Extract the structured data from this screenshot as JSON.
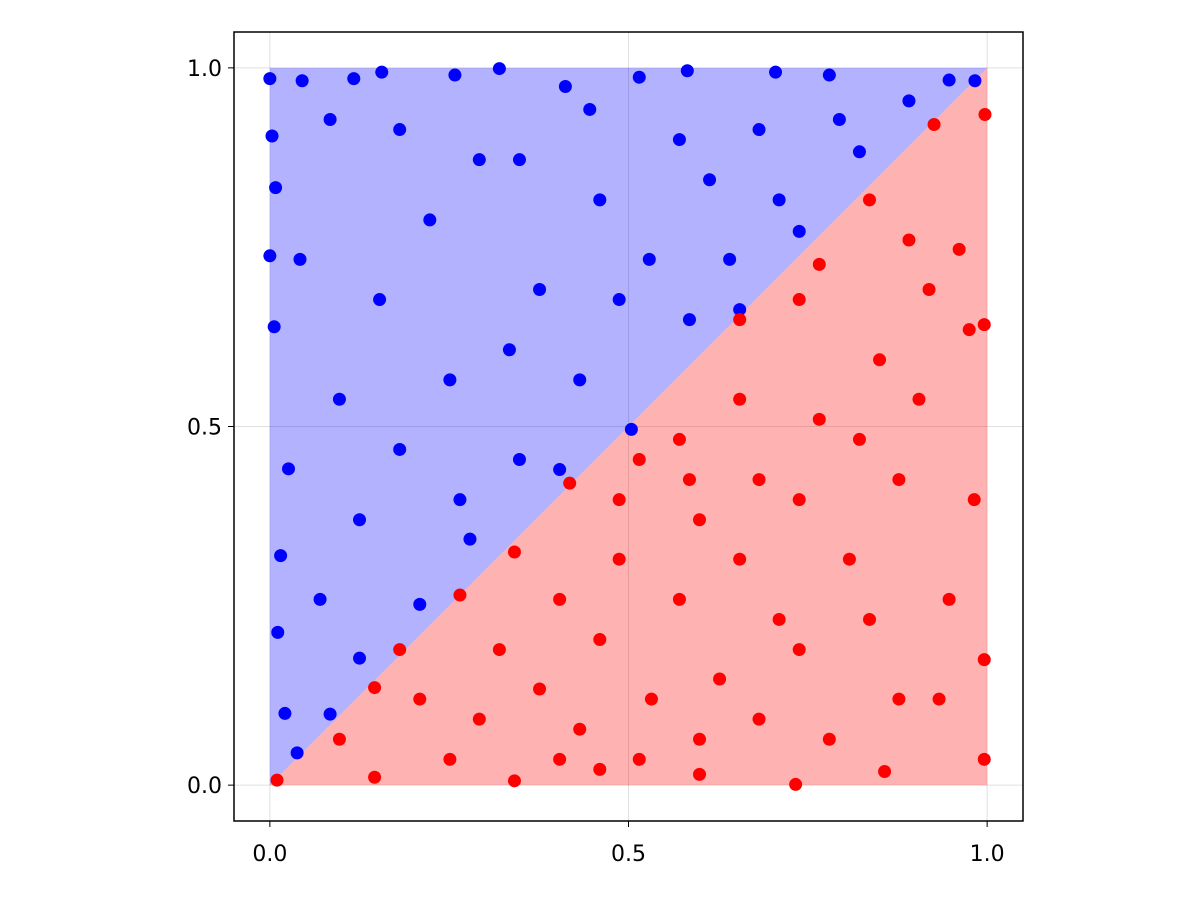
{
  "chart_data": {
    "type": "scatter",
    "title": "",
    "xlabel": "",
    "ylabel": "",
    "xlim": [
      -0.05,
      1.05
    ],
    "ylim": [
      -0.05,
      1.05
    ],
    "grid": true,
    "x_ticks": [
      "0.0",
      "0.5",
      "1.0"
    ],
    "y_ticks": [
      "0.0",
      "0.5",
      "1.0"
    ],
    "x_tick_values": [
      0,
      0.5,
      1
    ],
    "y_tick_values": [
      0,
      0.5,
      1
    ],
    "regions": [
      {
        "color": "#0000ff",
        "opacity": 0.3,
        "vertices": [
          [
            0,
            0
          ],
          [
            0,
            1
          ],
          [
            1,
            1
          ]
        ]
      },
      {
        "color": "#ff0000",
        "opacity": 0.3,
        "vertices": [
          [
            0,
            0
          ],
          [
            1,
            1
          ],
          [
            1,
            0
          ]
        ]
      }
    ],
    "note_points_sampled": true,
    "series": [
      {
        "color": "#0000ff",
        "points": [
          [
            0,
            0.985
          ],
          [
            0.003,
            0.905
          ],
          [
            0.008,
            0.833
          ],
          [
            0,
            0.738
          ],
          [
            0.006,
            0.639
          ],
          [
            0.026,
            0.441
          ],
          [
            0.015,
            0.32
          ],
          [
            0.011,
            0.213
          ],
          [
            0.021,
            0.1
          ],
          [
            0.038,
            0.045
          ],
          [
            0.045,
            0.982
          ],
          [
            0.084,
            0.928
          ],
          [
            0.117,
            0.985
          ],
          [
            0.156,
            0.994
          ],
          [
            0.258,
            0.99
          ],
          [
            0.32,
            0.999
          ],
          [
            0.412,
            0.974
          ],
          [
            0.515,
            0.987
          ],
          [
            0.582,
            0.996
          ],
          [
            0.705,
            0.994
          ],
          [
            0.78,
            0.99
          ],
          [
            0.891,
            0.954
          ],
          [
            0.983,
            0.982
          ],
          [
            0.822,
            0.883
          ],
          [
            0.738,
            0.772
          ],
          [
            0.655,
            0.663
          ],
          [
            0.585,
            0.649
          ],
          [
            0.504,
            0.496
          ],
          [
            0.404,
            0.44
          ],
          [
            0.279,
            0.343
          ],
          [
            0.209,
            0.252
          ],
          [
            0.125,
            0.177
          ],
          [
            0.084,
            0.099
          ],
          [
            0.042,
            0.733
          ],
          [
            0.097,
            0.538
          ],
          [
            0.153,
            0.677
          ],
          [
            0.223,
            0.788
          ],
          [
            0.292,
            0.872
          ],
          [
            0.376,
            0.691
          ],
          [
            0.46,
            0.816
          ],
          [
            0.529,
            0.733
          ],
          [
            0.613,
            0.844
          ],
          [
            0.682,
            0.914
          ],
          [
            0.181,
            0.468
          ],
          [
            0.251,
            0.565
          ],
          [
            0.334,
            0.607
          ],
          [
            0.432,
            0.565
          ],
          [
            0.487,
            0.677
          ],
          [
            0.125,
            0.37
          ],
          [
            0.07,
            0.259
          ],
          [
            0.181,
            0.914
          ],
          [
            0.348,
            0.872
          ],
          [
            0.446,
            0.942
          ],
          [
            0.571,
            0.9
          ],
          [
            0.641,
            0.733
          ],
          [
            0.71,
            0.816
          ],
          [
            0.794,
            0.928
          ],
          [
            0.947,
            0.983
          ],
          [
            0.265,
            0.398
          ],
          [
            0.348,
            0.454
          ]
        ]
      },
      {
        "color": "#ff0000",
        "points": [
          [
            0.01,
            0.007
          ],
          [
            0.097,
            0.064
          ],
          [
            0.146,
            0.011
          ],
          [
            0.251,
            0.036
          ],
          [
            0.341,
            0.006
          ],
          [
            0.46,
            0.022
          ],
          [
            0.599,
            0.015
          ],
          [
            0.733,
            0.001
          ],
          [
            0.857,
            0.019
          ],
          [
            0.996,
            0.036
          ],
          [
            0.997,
            0.935
          ],
          [
            0.996,
            0.642
          ],
          [
            0.926,
            0.921
          ],
          [
            0.982,
            0.398
          ],
          [
            0.996,
            0.175
          ],
          [
            0.836,
            0.816
          ],
          [
            0.766,
            0.726
          ],
          [
            0.655,
            0.649
          ],
          [
            0.571,
            0.482
          ],
          [
            0.515,
            0.454
          ],
          [
            0.418,
            0.421
          ],
          [
            0.341,
            0.325
          ],
          [
            0.265,
            0.265
          ],
          [
            0.181,
            0.189
          ],
          [
            0.146,
            0.136
          ],
          [
            0.209,
            0.12
          ],
          [
            0.32,
            0.189
          ],
          [
            0.404,
            0.259
          ],
          [
            0.487,
            0.315
          ],
          [
            0.599,
            0.37
          ],
          [
            0.682,
            0.426
          ],
          [
            0.766,
            0.51
          ],
          [
            0.85,
            0.593
          ],
          [
            0.919,
            0.691
          ],
          [
            0.961,
            0.747
          ],
          [
            0.877,
            0.426
          ],
          [
            0.808,
            0.315
          ],
          [
            0.71,
            0.231
          ],
          [
            0.627,
            0.148
          ],
          [
            0.532,
            0.12
          ],
          [
            0.432,
            0.078
          ],
          [
            0.376,
            0.134
          ],
          [
            0.46,
            0.203
          ],
          [
            0.571,
            0.259
          ],
          [
            0.655,
            0.315
          ],
          [
            0.738,
            0.398
          ],
          [
            0.822,
            0.482
          ],
          [
            0.905,
            0.538
          ],
          [
            0.947,
            0.259
          ],
          [
            0.877,
            0.12
          ],
          [
            0.78,
            0.064
          ],
          [
            0.682,
            0.092
          ],
          [
            0.599,
            0.064
          ],
          [
            0.515,
            0.036
          ],
          [
            0.404,
            0.036
          ],
          [
            0.292,
            0.092
          ],
          [
            0.933,
            0.12
          ],
          [
            0.975,
            0.635
          ],
          [
            0.891,
            0.76
          ],
          [
            0.738,
            0.677
          ],
          [
            0.655,
            0.538
          ],
          [
            0.585,
            0.426
          ],
          [
            0.487,
            0.398
          ],
          [
            0.738,
            0.189
          ],
          [
            0.836,
            0.231
          ]
        ]
      }
    ]
  }
}
